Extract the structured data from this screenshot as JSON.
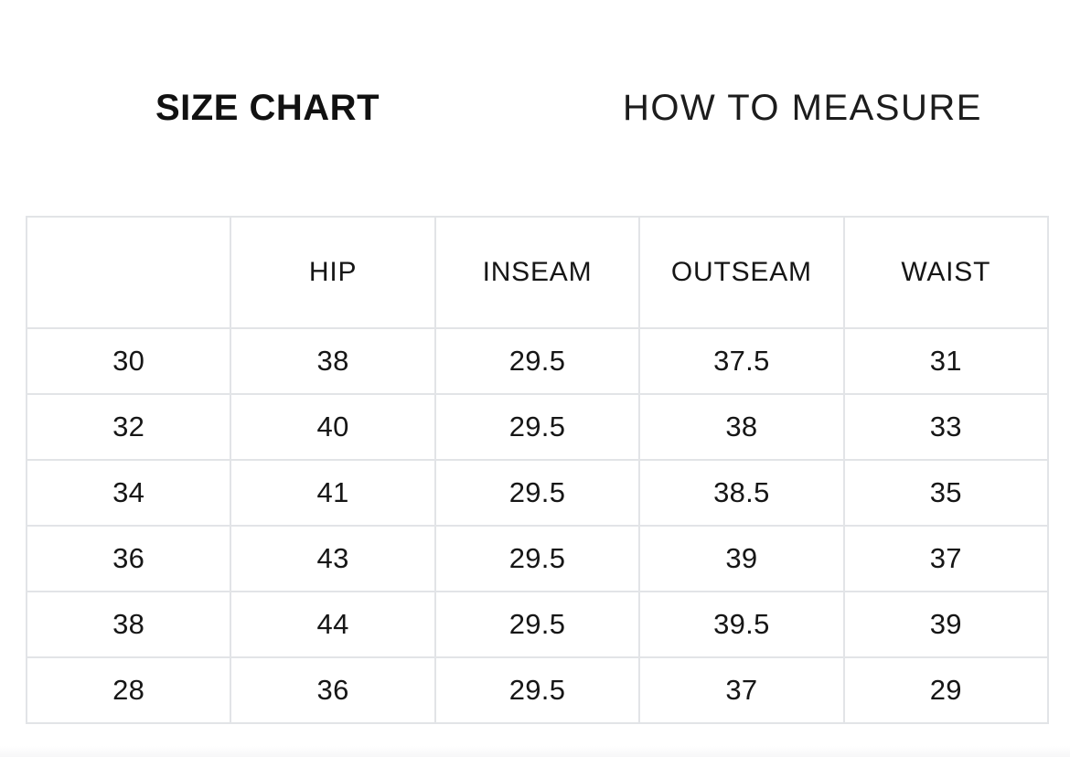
{
  "tabs": {
    "size_chart_label": "SIZE CHART",
    "how_to_measure_label": "HOW TO MEASURE",
    "active_tab": "SIZE CHART"
  },
  "table": {
    "columns": [
      "",
      "HIP",
      "INSEAM",
      "OUTSEAM",
      "WAIST"
    ],
    "rows": [
      [
        "30",
        "38",
        "29.5",
        "37.5",
        "31"
      ],
      [
        "32",
        "40",
        "29.5",
        "38",
        "33"
      ],
      [
        "34",
        "41",
        "29.5",
        "38.5",
        "35"
      ],
      [
        "36",
        "43",
        "29.5",
        "39",
        "37"
      ],
      [
        "38",
        "44",
        "29.5",
        "39.5",
        "39"
      ],
      [
        "28",
        "36",
        "29.5",
        "37",
        "29"
      ]
    ]
  },
  "colors": {
    "background": "#ffffff",
    "table_border": "#e2e4e7",
    "text": "#111111"
  }
}
